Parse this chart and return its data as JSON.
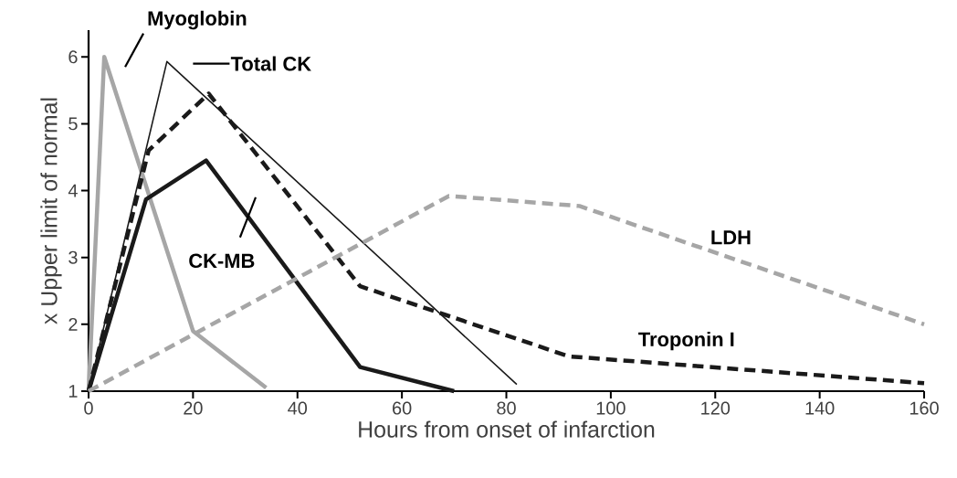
{
  "chart_data": {
    "type": "line",
    "xlabel": "Hours from  onset of infarction",
    "ylabel": "x Upper limit of normal",
    "xlim": [
      0,
      160
    ],
    "ylim": [
      1,
      6.4
    ],
    "xticks": [
      0,
      20,
      40,
      60,
      80,
      100,
      120,
      140,
      160
    ],
    "yticks": [
      1,
      2,
      3,
      4,
      5,
      6
    ],
    "grid": false,
    "legend": false,
    "marker": "none",
    "series": [
      {
        "name": "Myoglobin",
        "color": "#a6a6a6",
        "line_style": "solid",
        "x": [
          0,
          3,
          20,
          34
        ],
        "values": [
          1,
          6.0,
          1.9,
          1.05
        ]
      },
      {
        "name": "Total CK",
        "color": "#1a1a1a",
        "line_style": "solid",
        "x": [
          0,
          15,
          82
        ],
        "values": [
          1,
          5.93,
          1.1
        ]
      },
      {
        "name": "CK-MB",
        "color": "#1a1a1a",
        "line_style": "solid",
        "x": [
          0,
          11,
          22.5,
          52,
          70
        ],
        "values": [
          1,
          3.87,
          4.45,
          1.36,
          1.0
        ]
      },
      {
        "name": "Troponin I",
        "color": "#1a1a1a",
        "line_style": "dashed",
        "x": [
          0,
          11.5,
          23,
          52,
          92,
          160
        ],
        "values": [
          1,
          4.6,
          5.45,
          2.57,
          1.52,
          1.12
        ]
      },
      {
        "name": "LDH",
        "color": "#a6a6a6",
        "line_style": "dashed",
        "x": [
          0,
          69,
          94,
          160
        ],
        "values": [
          1,
          3.92,
          3.77,
          2.0
        ]
      }
    ]
  }
}
